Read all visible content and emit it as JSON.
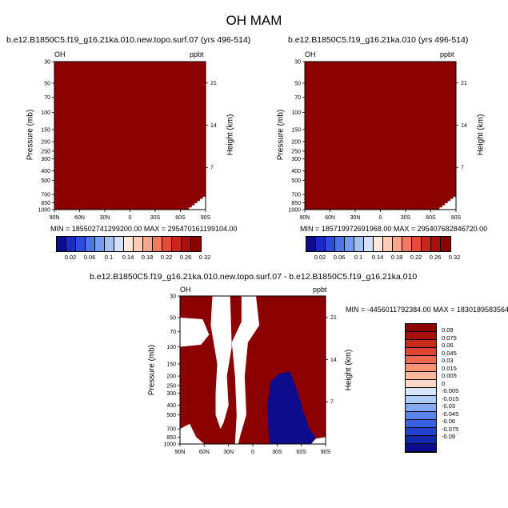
{
  "figure": {
    "title": "OH MAM"
  },
  "panels": [
    {
      "title": "b.e12.B1850C5.f19_g16.21ka.010.new.topo.surf.07 (yrs 496-514)",
      "left_label": "OH",
      "right_label": "ppbt",
      "ylabel": "Pressure (mb)",
      "ylabel_right": "Height (km)",
      "minmax": "MIN = 185502741299200.00   MAX = 295470161199104.00"
    },
    {
      "title": "b.e12.B1850C5.f19_g16.21ka.010 (yrs 496-514)",
      "left_label": "OH",
      "right_label": "ppbt",
      "ylabel": "Pressure (mb)",
      "ylabel_right": "Height (km)",
      "minmax": "MIN = 185719972691968.00   MAX = 295407682846720.00"
    },
    {
      "title": "b.e12.B1850C5.f19_g16.21ka.010.new.topo.surf.07 - b.e12.B1850C5.f19_g16.21ka.010",
      "left_label": "OH",
      "right_label": "ppbt",
      "ylabel": "Pressure (mb)",
      "ylabel_right": "Height (km)",
      "minmax": "MIN = -4456011792384.00   MAX = 1830189583564"
    }
  ],
  "chart_data": [
    {
      "type": "heatmap",
      "title": "b.e12.B1850C5.f19_g16.21ka.010.new.topo.surf.07 (yrs 496-514)",
      "variable": "OH",
      "units": "ppbt",
      "x_ticks": [
        "90N",
        "60N",
        "30N",
        "0",
        "30S",
        "60S",
        "90S"
      ],
      "y_ticks": [
        "30",
        "50",
        "70",
        "100",
        "150",
        "200",
        "250",
        "300",
        "400",
        "500",
        "700",
        "850",
        "1000"
      ],
      "y2_ticks": [
        "21",
        "14",
        "7"
      ],
      "xlabel": "",
      "ylabel": "Pressure (mb)",
      "y2label": "Height (km)",
      "min": 185502741299200.0,
      "max": 295470161199104.0,
      "field": "entire domain in top colour class",
      "colorbar_levels": [
        "0.02",
        "0.06",
        "0.1",
        "0.14",
        "0.18",
        "0.22",
        "0.26",
        "0.32"
      ]
    },
    {
      "type": "heatmap",
      "title": "b.e12.B1850C5.f19_g16.21ka.010 (yrs 496-514)",
      "variable": "OH",
      "units": "ppbt",
      "x_ticks": [
        "90N",
        "60N",
        "30N",
        "0",
        "30S",
        "60S",
        "90S"
      ],
      "y_ticks": [
        "30",
        "50",
        "70",
        "100",
        "150",
        "200",
        "250",
        "300",
        "400",
        "500",
        "700",
        "850",
        "1000"
      ],
      "y2_ticks": [
        "21",
        "14",
        "7"
      ],
      "xlabel": "",
      "ylabel": "Pressure (mb)",
      "y2label": "Height (km)",
      "min": 185719972691968.0,
      "max": 295407682846720.0,
      "field": "entire domain in top colour class",
      "colorbar_levels": [
        "0.02",
        "0.06",
        "0.1",
        "0.14",
        "0.18",
        "0.22",
        "0.26",
        "0.32"
      ]
    },
    {
      "type": "heatmap",
      "title": "b.e12.B1850C5.f19_g16.21ka.010.new.topo.surf.07 - b.e12.B1850C5.f19_g16.21ka.010",
      "variable": "OH",
      "units": "ppbt",
      "x_ticks": [
        "90N",
        "60N",
        "30N",
        "0",
        "30S",
        "60S",
        "90S"
      ],
      "y_ticks": [
        "30",
        "50",
        "70",
        "100",
        "150",
        "200",
        "250",
        "300",
        "400",
        "500",
        "700",
        "850",
        "1000"
      ],
      "y2_ticks": [
        "21",
        "14",
        "7"
      ],
      "xlabel": "",
      "ylabel": "Pressure (mb)",
      "y2label": "Height (km)",
      "min": -4456011792384.0,
      "max": 1830189583564,
      "field": "mostly top positive class; white band of near-zero values; negative region 20S-75S below 200 mb",
      "colorbar_levels": [
        "0.09",
        "0.075",
        "0.06",
        "0.045",
        "0.03",
        "0.015",
        "0.005",
        "0",
        "-0.005",
        "-0.015",
        "-0.03",
        "-0.045",
        "-0.06",
        "-0.075",
        "-0.09"
      ]
    }
  ],
  "colors": {
    "top_positive": "#8b0000",
    "bottom_negative": "#0c0c8c",
    "blues": [
      "#0c0c8c",
      "#1a2cc0",
      "#2b4de0",
      "#4b74ef",
      "#7598f2",
      "#a5bff5",
      "#d3e1f8"
    ],
    "reds": [
      "#fde6da",
      "#fbcbb4",
      "#f7a789",
      "#ef7b5c",
      "#e34c35",
      "#c8281b",
      "#a8100b",
      "#8b0000"
    ],
    "diff_reds": [
      "#8b0000",
      "#a8100b",
      "#c52a1a",
      "#dd4630",
      "#ef6a4e",
      "#f69474",
      "#fbb89e",
      "#fdd9c8"
    ],
    "diff_blues": [
      "#d7e6fa",
      "#aecaf6",
      "#84a9f2",
      "#5884ec",
      "#3661e2",
      "#2042cc",
      "#1129a8",
      "#0c0c8c"
    ]
  }
}
